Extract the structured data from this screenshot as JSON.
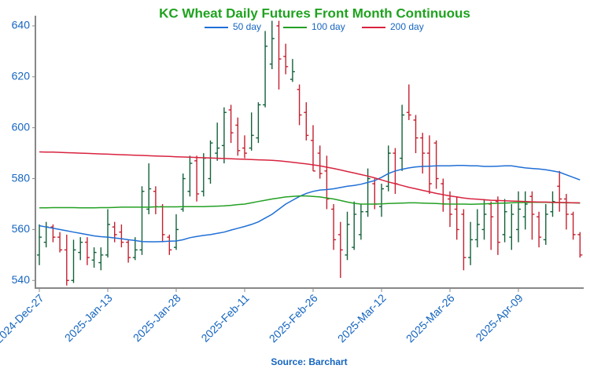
{
  "chart_data": {
    "type": "ohlc",
    "title": "KC Wheat Daily Futures Front Month Continuous",
    "source": "Source: Barchart",
    "categories": [
      "2024-Dec-27",
      null,
      null,
      null,
      null,
      null,
      null,
      null,
      null,
      null,
      "2025-Jan-13",
      null,
      null,
      null,
      null,
      null,
      null,
      null,
      null,
      null,
      "2025-Jan-28",
      null,
      null,
      null,
      null,
      null,
      null,
      null,
      null,
      null,
      "2025-Feb-11",
      null,
      null,
      null,
      null,
      null,
      null,
      null,
      null,
      null,
      "2025-Feb-26",
      null,
      null,
      null,
      null,
      null,
      null,
      null,
      null,
      null,
      "2025-Mar-12",
      null,
      null,
      null,
      null,
      null,
      null,
      null,
      null,
      null,
      "2025-Mar-26",
      null,
      null,
      null,
      null,
      null,
      null,
      null,
      null,
      null,
      "2025-Apr-09",
      null,
      null,
      null,
      null,
      null,
      null,
      null,
      null,
      null
    ],
    "ohlc": {
      "up_color": "#12623a",
      "down_color": "#c4202f",
      "open": [
        550,
        555,
        561,
        557,
        552,
        540,
        551,
        555,
        548,
        547,
        550,
        561,
        559,
        555,
        549,
        552,
        568,
        575,
        569,
        557,
        553,
        568,
        575,
        587,
        575,
        580,
        590,
        593,
        607,
        601,
        592,
        592,
        596,
        609,
        625,
        640,
        628,
        619,
        615,
        606,
        595,
        590,
        583,
        568,
        558,
        550,
        553,
        558,
        567,
        578,
        569,
        577,
        590,
        588,
        606,
        603,
        596,
        590,
        594,
        578,
        572,
        568,
        566,
        549,
        556,
        560,
        570,
        571,
        558,
        557,
        560,
        565,
        573,
        565,
        556,
        567,
        577,
        572,
        566,
        558
      ],
      "high": [
        562,
        563,
        562,
        559,
        558,
        556,
        557,
        557,
        553,
        553,
        568,
        563,
        562,
        556,
        557,
        577,
        586,
        577,
        570,
        558,
        566,
        582,
        589,
        589,
        590,
        595,
        602,
        608,
        609,
        604,
        597,
        606,
        610,
        638,
        642,
        642,
        633,
        627,
        617,
        610,
        601,
        593,
        589,
        570,
        563,
        567,
        571,
        570,
        584,
        580,
        578,
        593,
        592,
        609,
        617,
        605,
        598,
        597,
        595,
        580,
        575,
        573,
        568,
        563,
        568,
        572,
        571,
        573,
        572,
        570,
        575,
        575,
        575,
        567,
        570,
        575,
        583,
        574,
        567,
        559
      ],
      "low": [
        546,
        553,
        555,
        551,
        538,
        539,
        548,
        546,
        545,
        544,
        549,
        555,
        553,
        547,
        548,
        550,
        566,
        566,
        555,
        550,
        552,
        567,
        573,
        571,
        573,
        578,
        587,
        586,
        594,
        589,
        588,
        591,
        594,
        608,
        623,
        615,
        621,
        618,
        601,
        595,
        583,
        580,
        568,
        552,
        541,
        548,
        552,
        556,
        565,
        568,
        565,
        575,
        574,
        583,
        603,
        590,
        582,
        574,
        576,
        567,
        561,
        556,
        544,
        546,
        553,
        556,
        552,
        550,
        555,
        552,
        555,
        560,
        556,
        553,
        554,
        565,
        567,
        560,
        556,
        549
      ],
      "close": [
        557,
        561,
        557,
        552,
        540,
        552,
        555,
        549,
        551,
        550,
        562,
        558,
        555,
        549,
        552,
        575,
        576,
        569,
        558,
        552,
        560,
        580,
        586,
        574,
        588,
        594,
        592,
        606,
        598,
        591,
        590,
        597,
        609,
        632,
        635,
        627,
        624,
        622,
        605,
        597,
        583,
        582,
        572,
        556,
        552,
        562,
        566,
        567,
        580,
        570,
        576,
        590,
        578,
        605,
        605,
        596,
        590,
        578,
        580,
        570,
        566,
        560,
        549,
        556,
        562,
        566,
        565,
        555,
        567,
        566,
        568,
        570,
        566,
        557,
        566,
        571,
        572,
        566,
        558,
        550
      ]
    },
    "series": [
      {
        "name": "50 day",
        "color": "#1f6fd6",
        "values": [
          561.5,
          561,
          560.5,
          560,
          559.5,
          559,
          558.5,
          558,
          557.5,
          557.2,
          557,
          556.7,
          556.4,
          556,
          555.7,
          555.3,
          555.2,
          555.2,
          555.3,
          555.4,
          555.5,
          556,
          556.8,
          557.3,
          557.7,
          558,
          558.5,
          559,
          559.8,
          560.5,
          561.2,
          562,
          563,
          564.5,
          566,
          568,
          570,
          571.5,
          573,
          574.2,
          575,
          575.5,
          575.7,
          576,
          576.5,
          577,
          577.3,
          577.8,
          578.5,
          579.2,
          580.5,
          582,
          583,
          583.7,
          584.2,
          584.6,
          584.8,
          584.9,
          585,
          585,
          585,
          585.2,
          585.2,
          585,
          585,
          584.8,
          584.8,
          584.9,
          585,
          585,
          584.6,
          584.2,
          584,
          583.8,
          583.5,
          583,
          582.5,
          581.5,
          580.5,
          579.5
        ]
      },
      {
        "name": "100 day",
        "color": "#23a023",
        "values": [
          568.5,
          568.5,
          568.6,
          568.6,
          568.6,
          568.6,
          568.5,
          568.5,
          568.5,
          568.6,
          568.6,
          568.7,
          568.8,
          568.8,
          568.8,
          568.8,
          568.8,
          568.9,
          568.9,
          568.9,
          568.9,
          569,
          569,
          569,
          569,
          569.1,
          569.2,
          569.3,
          569.5,
          569.8,
          570,
          570.5,
          571,
          571.5,
          572,
          572.4,
          572.8,
          573,
          573.2,
          573.2,
          573,
          572.8,
          572.4,
          572,
          571.4,
          570.8,
          570.3,
          570,
          570,
          570,
          570.1,
          570.2,
          570.3,
          570.4,
          570.5,
          570.5,
          570.4,
          570.3,
          570.2,
          570.1,
          570,
          570,
          570,
          569.9,
          570,
          570.1,
          570.2,
          570.3,
          570.4,
          570.5,
          570.6,
          570.6,
          570.7,
          570.7,
          570.7,
          570.6,
          570.6,
          570.5,
          570.5,
          570.4
        ]
      },
      {
        "name": "200 day",
        "color": "#d8233f",
        "values": [
          590.5,
          590.4,
          590.4,
          590.3,
          590.2,
          590.1,
          590,
          589.9,
          589.8,
          589.7,
          589.6,
          589.5,
          589.4,
          589.3,
          589.2,
          589.1,
          589,
          588.9,
          588.8,
          588.7,
          588.6,
          588.5,
          588.4,
          588.3,
          588.2,
          588.1,
          588,
          587.9,
          587.8,
          587.7,
          587.6,
          587.5,
          587.4,
          587.3,
          587.2,
          587,
          586.7,
          586.4,
          586.1,
          585.8,
          585.4,
          585,
          584.5,
          584,
          583.4,
          582.8,
          582.2,
          581.6,
          581,
          580.3,
          579.5,
          578.7,
          578,
          577.3,
          576.6,
          576,
          575.4,
          574.8,
          574.2,
          573.7,
          573.2,
          572.8,
          572.4,
          572.1,
          571.9,
          571.7,
          571.5,
          571.4,
          571.3,
          571.2,
          571.1,
          571,
          570.9,
          570.8,
          570.8,
          570.7,
          570.6,
          570.6,
          570.5,
          570.5
        ]
      }
    ],
    "ylim": [
      537,
      644
    ],
    "yticks": [
      540,
      560,
      580,
      600,
      620,
      640
    ]
  }
}
